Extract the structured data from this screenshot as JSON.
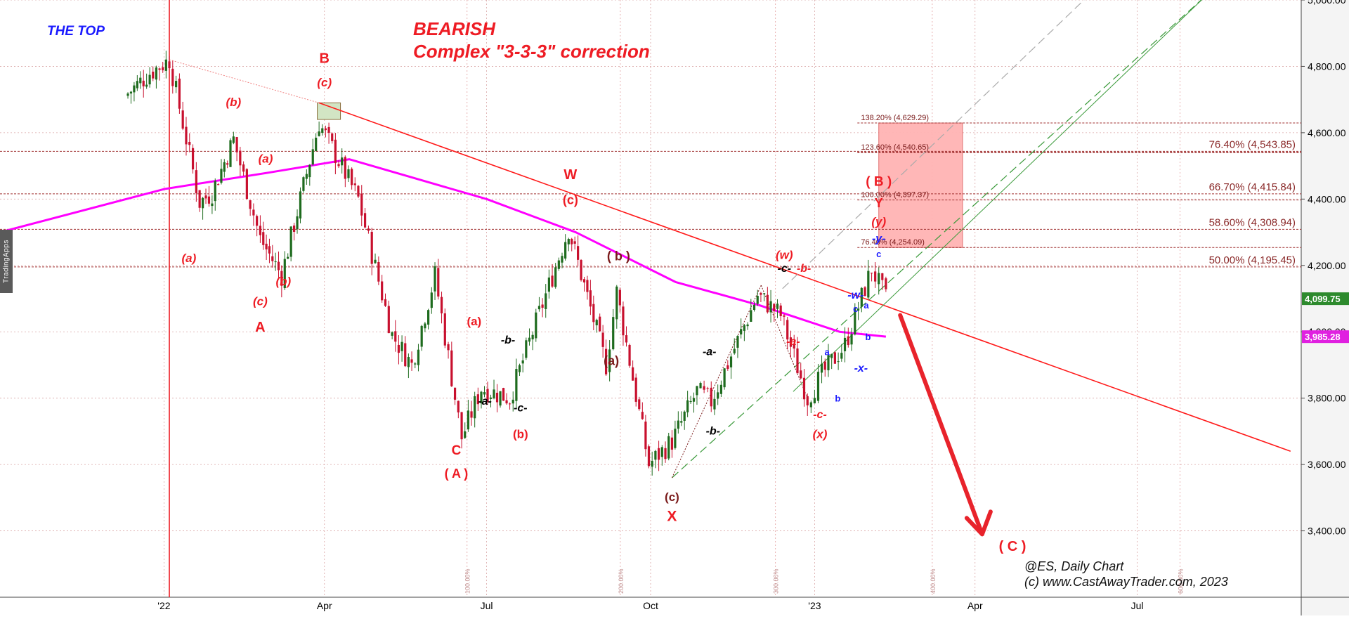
{
  "title_lines": [
    "BEARISH",
    "Complex \"3-3-3\" correction"
  ],
  "top_label": "THE TOP",
  "side_tab": "TradingApps",
  "footer": [
    "@ES,  Daily Chart",
    "(c) www.CastAwayTrader.com, 2023"
  ],
  "colors": {
    "up": "#1e6b1e",
    "down": "#c8102e",
    "ma": "#ff00ff",
    "trend": "#ff1a1a",
    "wave_red": "#ee1c24",
    "wave_dark": "#7a1a1a",
    "wave_blue": "#1a1aff",
    "channel": "#3a9a3a",
    "target_zone": "#ffb3b3",
    "last_badge": "#2d8a2d",
    "ma_badge": "#e020e0"
  },
  "chart_data": {
    "type": "candlestick",
    "instrument": "@ES",
    "timeframe": "Daily Chart",
    "ylim": [
      3200,
      5000
    ],
    "y_ticks": [
      "5,000.00",
      "4,800.00",
      "4,600.00",
      "4,400.00",
      "4,200.00",
      "4,000.00",
      "3,800.00",
      "3,600.00",
      "3,400.00"
    ],
    "x_ticks": [
      "'22",
      "Apr",
      "Jul",
      "Oct",
      "'23",
      "Apr",
      "Jul"
    ],
    "last_price": "4,099.75",
    "ma_value": "3,985.28",
    "series": [
      {
        "name": "price",
        "style": "candles",
        "values": [
          {
            "d": "2021-12-10",
            "o": 4690,
            "c": 4710
          },
          {
            "d": "2021-12-24",
            "o": 4700,
            "c": 4780
          },
          {
            "d": "2022-01-04",
            "o": 4790,
            "c": 4820
          },
          {
            "d": "2022-01-21",
            "o": 4550,
            "c": 4390
          },
          {
            "d": "2022-01-28",
            "o": 4400,
            "c": 4420
          },
          {
            "d": "2022-02-09",
            "o": 4490,
            "c": 4580
          },
          {
            "d": "2022-02-24",
            "o": 4200,
            "c": 4280
          },
          {
            "d": "2022-03-08",
            "o": 4200,
            "c": 4170
          },
          {
            "d": "2022-03-29",
            "o": 4610,
            "c": 4630
          },
          {
            "d": "2022-04-20",
            "o": 4450,
            "c": 4400
          },
          {
            "d": "2022-05-09",
            "o": 4100,
            "c": 3990
          },
          {
            "d": "2022-05-20",
            "o": 3880,
            "c": 3900
          },
          {
            "d": "2022-06-02",
            "o": 4160,
            "c": 4170
          },
          {
            "d": "2022-06-17",
            "o": 3700,
            "c": 3680
          },
          {
            "d": "2022-06-28",
            "o": 3880,
            "c": 3830
          },
          {
            "d": "2022-07-14",
            "o": 3780,
            "c": 3800
          },
          {
            "d": "2022-08-16",
            "o": 4300,
            "c": 4310
          },
          {
            "d": "2022-09-06",
            "o": 3910,
            "c": 3900
          },
          {
            "d": "2022-09-12",
            "o": 4110,
            "c": 4120
          },
          {
            "d": "2022-09-30",
            "o": 3620,
            "c": 3600
          },
          {
            "d": "2022-10-13",
            "o": 3560,
            "c": 3670
          },
          {
            "d": "2022-10-27",
            "o": 3830,
            "c": 3820
          },
          {
            "d": "2022-11-04",
            "o": 3780,
            "c": 3790
          },
          {
            "d": "2022-11-30",
            "o": 4080,
            "c": 4110
          },
          {
            "d": "2022-12-13",
            "o": 4150,
            "c": 4050
          },
          {
            "d": "2022-12-28",
            "o": 3820,
            "c": 3800
          },
          {
            "d": "2023-01-05",
            "o": 3850,
            "c": 3870
          },
          {
            "d": "2023-01-18",
            "o": 3990,
            "c": 3960
          },
          {
            "d": "2023-02-02",
            "o": 4170,
            "c": 4190
          },
          {
            "d": "2023-02-10",
            "o": 4110,
            "c": 4099.75
          }
        ]
      },
      {
        "name": "moving average",
        "style": "line",
        "values": [
          {
            "d": "2021-10-01",
            "v": 4300
          },
          {
            "d": "2022-01-01",
            "v": 4430
          },
          {
            "d": "2022-03-01",
            "v": 4480
          },
          {
            "d": "2022-04-15",
            "v": 4520
          },
          {
            "d": "2022-07-01",
            "v": 4400
          },
          {
            "d": "2022-08-20",
            "v": 4300
          },
          {
            "d": "2022-10-15",
            "v": 4150
          },
          {
            "d": "2022-12-01",
            "v": 4080
          },
          {
            "d": "2023-01-15",
            "v": 4000
          },
          {
            "d": "2023-02-10",
            "v": 3985.28
          }
        ]
      }
    ],
    "fib_levels_left": [
      {
        "label": "138.20% (4,629.29)",
        "value": 4629.29
      },
      {
        "label": "123.60% (4,540.65)",
        "value": 4540.65
      },
      {
        "label": "100.00% (4,397.37)",
        "value": 4397.37
      },
      {
        "label": "76.40% (4,254.09)",
        "value": 4254.09
      }
    ],
    "fib_levels_right": [
      {
        "label": "76.40% (4,543.85)",
        "value": 4543.85
      },
      {
        "label": "66.70% (4,415.84)",
        "value": 4415.84
      },
      {
        "label": "58.60% (4,308.94)",
        "value": 4308.94
      },
      {
        "label": "50.00% (4,195.45)",
        "value": 4195.45
      }
    ],
    "time_pct_labels": [
      "100.00%",
      "200.00%",
      "300.00%",
      "400.00%",
      "600.00%"
    ],
    "wave_labels": [
      {
        "text": "(a)",
        "d": "2022-01-15",
        "v": 4210,
        "c": "wave_red",
        "s": 17,
        "i": true
      },
      {
        "text": "(b)",
        "d": "2022-02-09",
        "v": 4680,
        "c": "wave_red",
        "s": 17,
        "i": true
      },
      {
        "text": "(a)",
        "d": "2022-02-27",
        "v": 4510,
        "c": "wave_red",
        "s": 17,
        "i": true
      },
      {
        "text": "(c)",
        "d": "2022-02-24",
        "v": 4080,
        "c": "wave_red",
        "s": 17,
        "i": true
      },
      {
        "text": "(b)",
        "d": "2022-03-09",
        "v": 4140,
        "c": "wave_red",
        "s": 17,
        "i": true
      },
      {
        "text": "A",
        "d": "2022-02-24",
        "v": 4000,
        "c": "wave_red",
        "s": 20
      },
      {
        "text": "B",
        "d": "2022-04-01",
        "v": 4810,
        "c": "wave_red",
        "s": 20
      },
      {
        "text": "(c)",
        "d": "2022-04-01",
        "v": 4740,
        "c": "wave_red",
        "s": 17,
        "i": true
      },
      {
        "text": "W",
        "d": "2022-08-17",
        "v": 4460,
        "c": "wave_red",
        "s": 20
      },
      {
        "text": "(c)",
        "d": "2022-08-17",
        "v": 4385,
        "c": "wave_red",
        "s": 18
      },
      {
        "text": "( b )",
        "d": "2022-09-13",
        "v": 4215,
        "c": "wave_dark",
        "s": 18
      },
      {
        "text": "(a)",
        "d": "2022-09-09",
        "v": 3900,
        "c": "wave_dark",
        "s": 18
      },
      {
        "text": "(a)",
        "d": "2022-06-24",
        "v": 4020,
        "c": "wave_red",
        "s": 17
      },
      {
        "text": "-b-",
        "d": "2022-07-13",
        "v": 3965,
        "c": "black",
        "s": 16,
        "i": true
      },
      {
        "text": "-a-",
        "d": "2022-06-30",
        "v": 3780,
        "c": "black",
        "s": 16,
        "i": true
      },
      {
        "text": "-c-",
        "d": "2022-07-20",
        "v": 3760,
        "c": "black",
        "s": 16,
        "i": true
      },
      {
        "text": "(b)",
        "d": "2022-07-20",
        "v": 3680,
        "c": "wave_red",
        "s": 17
      },
      {
        "text": "C",
        "d": "2022-06-14",
        "v": 3630,
        "c": "wave_red",
        "s": 19
      },
      {
        "text": "( A )",
        "d": "2022-06-14",
        "v": 3560,
        "c": "wave_red",
        "s": 18
      },
      {
        "text": "(c)",
        "d": "2022-10-13",
        "v": 3490,
        "c": "wave_dark",
        "s": 17
      },
      {
        "text": "X",
        "d": "2022-10-13",
        "v": 3430,
        "c": "wave_red",
        "s": 21
      },
      {
        "text": "-a-",
        "d": "2022-11-03",
        "v": 3930,
        "c": "black",
        "s": 16,
        "i": true
      },
      {
        "text": "-b-",
        "d": "2022-11-05",
        "v": 3690,
        "c": "black",
        "s": 16,
        "i": true
      },
      {
        "text": "(w)",
        "d": "2022-12-15",
        "v": 4220,
        "c": "wave_red",
        "s": 17,
        "i": true
      },
      {
        "text": "-c-",
        "d": "2022-12-15",
        "v": 4180,
        "c": "black",
        "s": 16,
        "i": true
      },
      {
        "text": "-b-",
        "d": "2022-12-26",
        "v": 4180,
        "c": "wave_red",
        "s": 16,
        "i": true
      },
      {
        "text": "-a-",
        "d": "2022-12-20",
        "v": 3960,
        "c": "wave_red",
        "s": 16,
        "i": true
      },
      {
        "text": "-c-",
        "d": "2023-01-04",
        "v": 3740,
        "c": "wave_red",
        "s": 16,
        "i": true
      },
      {
        "text": "(x)",
        "d": "2023-01-04",
        "v": 3680,
        "c": "wave_red",
        "s": 17,
        "i": true
      },
      {
        "text": "a",
        "d": "2023-01-08",
        "v": 3930,
        "c": "wave_blue",
        "s": 13
      },
      {
        "text": "b",
        "d": "2023-01-14",
        "v": 3790,
        "c": "wave_blue",
        "s": 13
      },
      {
        "text": "c",
        "d": "2023-01-24",
        "v": 4060,
        "c": "wave_blue",
        "s": 13
      },
      {
        "text": "-w-",
        "d": "2023-01-24",
        "v": 4100,
        "c": "wave_blue",
        "s": 16,
        "i": true
      },
      {
        "text": "-x-",
        "d": "2023-01-27",
        "v": 3880,
        "c": "wave_blue",
        "s": 16,
        "i": true
      },
      {
        "text": "a",
        "d": "2023-01-30",
        "v": 4070,
        "c": "wave_blue",
        "s": 13
      },
      {
        "text": "b",
        "d": "2023-01-31",
        "v": 3975,
        "c": "wave_blue",
        "s": 13
      },
      {
        "text": "c",
        "d": "2023-02-06",
        "v": 4225,
        "c": "wave_blue",
        "s": 13
      },
      {
        "text": "-y-",
        "d": "2023-02-06",
        "v": 4270,
        "c": "wave_blue",
        "s": 16,
        "i": true
      },
      {
        "text": "(y)",
        "d": "2023-02-06",
        "v": 4320,
        "c": "wave_red",
        "s": 17,
        "i": true
      },
      {
        "text": "Y",
        "d": "2023-02-06",
        "v": 4375,
        "c": "wave_red",
        "s": 18
      },
      {
        "text": "( B )",
        "d": "2023-02-06",
        "v": 4440,
        "c": "wave_red",
        "s": 19
      },
      {
        "text": "( C )",
        "d": "2023-04-22",
        "v": 3340,
        "c": "wave_red",
        "s": 20
      }
    ]
  }
}
